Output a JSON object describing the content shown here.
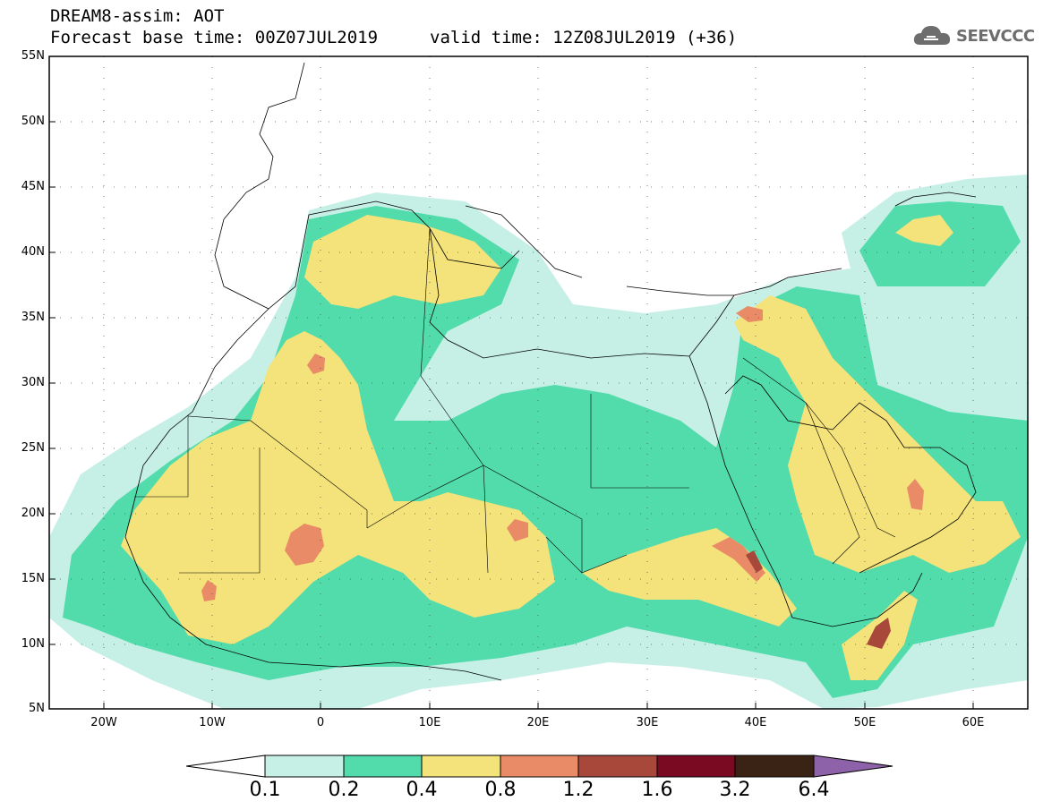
{
  "header": {
    "line1": "DREAM8-assim: AOT",
    "line2": "Forecast base time: 00Z07JUL2019",
    "valid": "valid time: 12Z08JUL2019 (+36)",
    "logo_text": "SEEVCCC"
  },
  "map": {
    "lon_range": [
      -25,
      65
    ],
    "lat_range": [
      5,
      55
    ],
    "lat_labels": [
      "55N",
      "50N",
      "45N",
      "40N",
      "35N",
      "30N",
      "25N",
      "20N",
      "15N",
      "10N",
      "5N"
    ],
    "lon_labels": [
      "20W",
      "10W",
      "0",
      "10E",
      "20E",
      "30E",
      "40E",
      "50E",
      "60E"
    ],
    "grid": "dotted"
  },
  "colorbar": {
    "labels": [
      "0.1",
      "0.2",
      "0.4",
      "0.8",
      "1.2",
      "1.6",
      "3.2",
      "6.4"
    ],
    "colors": [
      "#ffffff",
      "#c6efe6",
      "#52dbab",
      "#f4e27a",
      "#e88b66",
      "#a7483b",
      "#7a0a22",
      "#3a2214",
      "#8d62a8"
    ]
  },
  "colors": {
    "level_0_1": "#c6efe6",
    "level_0_2": "#52dbab",
    "level_0_4": "#f4e27a",
    "level_0_8": "#e88b66",
    "level_1_2": "#a7483b",
    "sea_land": "#ffffff",
    "border": "#000000"
  }
}
